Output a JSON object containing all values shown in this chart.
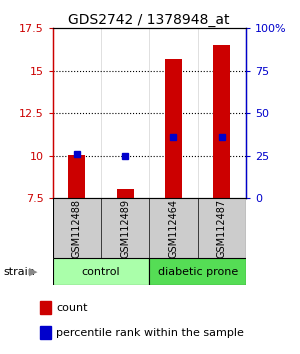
{
  "title": "GDS2742 / 1378948_at",
  "samples": [
    "GSM112488",
    "GSM112489",
    "GSM112464",
    "GSM112487"
  ],
  "ylim_left": [
    7.5,
    17.5
  ],
  "ylim_right": [
    0,
    100
  ],
  "yticks_left": [
    7.5,
    10.0,
    12.5,
    15.0,
    17.5
  ],
  "yticks_right": [
    0,
    25,
    50,
    75,
    100
  ],
  "ytick_labels_left": [
    "7.5",
    "10",
    "12.5",
    "15",
    "17.5"
  ],
  "ytick_labels_right": [
    "0",
    "25",
    "50",
    "75",
    "100%"
  ],
  "count_values": [
    10.05,
    8.05,
    15.7,
    16.5
  ],
  "count_base": 7.5,
  "percentile_values": [
    26.0,
    25.0,
    36.0,
    36.0
  ],
  "red_color": "#cc0000",
  "blue_color": "#0000cc",
  "bar_width": 0.35,
  "bg_color": "#ffffff",
  "sample_box_color": "#cccccc",
  "control_color": "#aaffaa",
  "diabetic_color": "#55dd55",
  "title_fontsize": 10,
  "tick_fontsize": 8,
  "legend_fontsize": 8
}
